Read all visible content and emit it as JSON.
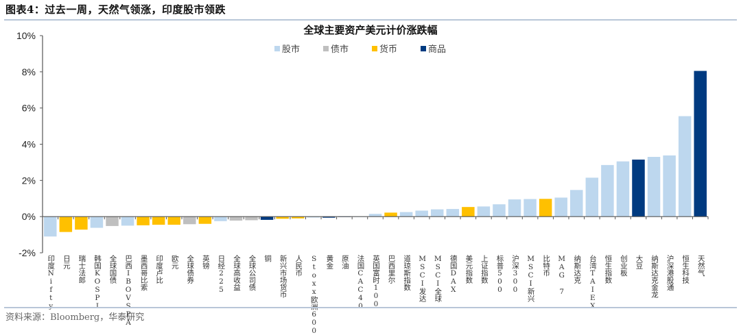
{
  "figure": {
    "title": "图表4：过去一周，天然气领涨，印度股市领跌",
    "source": "资料来源：Bloomberg，华泰研究"
  },
  "legend": [
    {
      "label": "股市",
      "color": "#bdd7ee"
    },
    {
      "label": "债市",
      "color": "#bfbfbf"
    },
    {
      "label": "货币",
      "color": "#ffc000"
    },
    {
      "label": "商品",
      "color": "#003a80"
    }
  ],
  "chart_data": {
    "type": "bar",
    "title": "全球主要资产美元计价涨跌幅",
    "xlabel": "",
    "ylabel": "",
    "ylim": [
      -2,
      10
    ],
    "yticks": [
      "-2%",
      "0%",
      "2%",
      "4%",
      "6%",
      "8%",
      "10%"
    ],
    "grid": false,
    "legend_position": "top",
    "categories": [
      "印度Nifty",
      "日元",
      "瑞士法郎",
      "韩国KOSPI",
      "全球国债",
      "巴西IBOVSPA",
      "墨西哥比索",
      "印度卢比",
      "欧元",
      "全球债券",
      "英镑",
      "日经225",
      "全球高收益",
      "全球公司债",
      "铜",
      "新兴市场货币",
      "人民币",
      "Stoxx欧洲600",
      "黄金",
      "原油",
      "法国CAC40",
      "英国富时100",
      "巴西里尔",
      "道琼斯指数",
      "MSCI发达",
      "MSCI全球",
      "德国DAX",
      "美元指数",
      "上证指数",
      "标普500",
      "沪深300",
      "MSCI新兴",
      "比特币",
      "MAG 7",
      "纳斯达克",
      "台湾TAIEX",
      "恒生指数",
      "创业板",
      "大豆",
      "纳斯达克金龙",
      "沪深港股通",
      "恒生科技",
      "天然气"
    ],
    "classes": [
      "股市",
      "货币",
      "货币",
      "股市",
      "债市",
      "股市",
      "货币",
      "货币",
      "货币",
      "债市",
      "货币",
      "股市",
      "债市",
      "债市",
      "商品",
      "货币",
      "货币",
      "股市",
      "商品",
      "商品",
      "股市",
      "股市",
      "货币",
      "股市",
      "股市",
      "股市",
      "股市",
      "货币",
      "股市",
      "股市",
      "股市",
      "股市",
      "货币",
      "股市",
      "股市",
      "股市",
      "股市",
      "股市",
      "商品",
      "股市",
      "股市",
      "股市",
      "商品"
    ],
    "values": [
      -1.1,
      -0.85,
      -0.72,
      -0.62,
      -0.52,
      -0.5,
      -0.48,
      -0.45,
      -0.45,
      -0.42,
      -0.4,
      -0.25,
      -0.22,
      -0.2,
      -0.18,
      -0.12,
      -0.1,
      -0.05,
      -0.06,
      -0.02,
      0.0,
      0.15,
      0.22,
      0.25,
      0.33,
      0.4,
      0.42,
      0.53,
      0.56,
      0.68,
      0.95,
      0.97,
      0.98,
      1.05,
      1.47,
      2.15,
      2.85,
      3.05,
      3.15,
      3.3,
      3.38,
      5.55,
      8.05
    ]
  }
}
